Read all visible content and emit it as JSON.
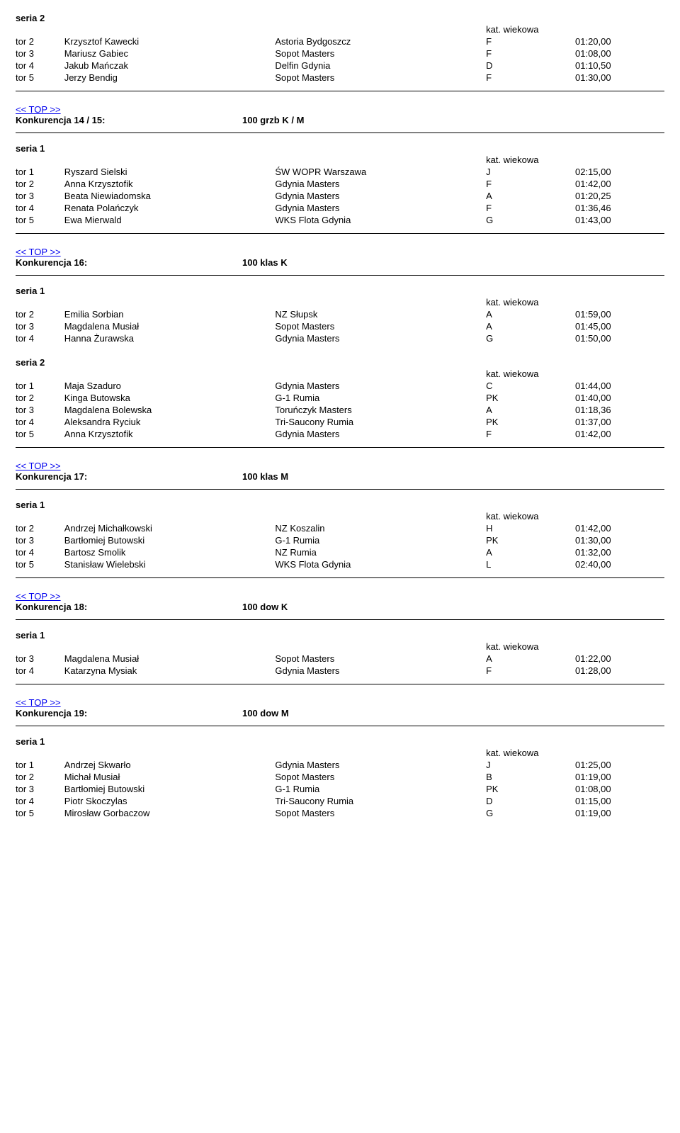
{
  "labels": {
    "seria1": "seria 1",
    "seria2": "seria 2",
    "kat": "kat. wiekowa",
    "top": "<< TOP >>"
  },
  "blocks": [
    {
      "pre_series": {
        "label": "seria2",
        "rows": [
          {
            "lane": "tor 2",
            "name": "Krzysztof Kawecki",
            "club": "Astoria Bydgoszcz",
            "cat": "F",
            "time": "01:20,00"
          },
          {
            "lane": "tor 3",
            "name": "Mariusz Gabiec",
            "club": "Sopot Masters",
            "cat": "F",
            "time": "01:08,00"
          },
          {
            "lane": "tor 4",
            "name": "Jakub Mańczak",
            "club": "Delfin Gdynia",
            "cat": "D",
            "time": "01:10,50"
          },
          {
            "lane": "tor 5",
            "name": "Jerzy Bendig",
            "club": "Sopot Masters",
            "cat": "F",
            "time": "01:30,00"
          }
        ]
      }
    },
    {
      "header": {
        "title": "Konkurencja 14 / 15:",
        "event": "100 grzb K / M"
      },
      "series": [
        {
          "label": "seria1",
          "rows": [
            {
              "lane": "tor 1",
              "name": "Ryszard Sielski",
              "club": "ŚW WOPR Warszawa",
              "cat": "J",
              "time": "02:15,00"
            },
            {
              "lane": "tor 2",
              "name": "Anna Krzysztofik",
              "club": "Gdynia Masters",
              "cat": "F",
              "time": "01:42,00"
            },
            {
              "lane": "tor 3",
              "name": "Beata Niewiadomska",
              "club": "Gdynia Masters",
              "cat": "A",
              "time": "01:20,25"
            },
            {
              "lane": "tor 4",
              "name": "Renata Polańczyk",
              "club": "Gdynia Masters",
              "cat": "F",
              "time": "01:36,46"
            },
            {
              "lane": "tor 5",
              "name": "Ewa Mierwald",
              "club": "WKS Flota Gdynia",
              "cat": "G",
              "time": "01:43,00"
            }
          ]
        }
      ]
    },
    {
      "header": {
        "title": "Konkurencja 16:",
        "event": "100 klas K"
      },
      "series": [
        {
          "label": "seria1",
          "rows": [
            {
              "lane": "tor 2",
              "name": "Emilia Sorbian",
              "club": "NZ Słupsk",
              "cat": "A",
              "time": "01:59,00"
            },
            {
              "lane": "tor 3",
              "name": "Magdalena Musiał",
              "club": "Sopot Masters",
              "cat": "A",
              "time": "01:45,00"
            },
            {
              "lane": "tor 4",
              "name": "Hanna Żurawska",
              "club": "Gdynia Masters",
              "cat": "G",
              "time": "01:50,00"
            }
          ]
        },
        {
          "label": "seria2",
          "rows": [
            {
              "lane": "tor 1",
              "name": "Maja Szaduro",
              "club": "Gdynia Masters",
              "cat": "C",
              "time": "01:44,00"
            },
            {
              "lane": "tor 2",
              "name": "Kinga Butowska",
              "club": "G-1 Rumia",
              "cat": "PK",
              "time": "01:40,00"
            },
            {
              "lane": "tor 3",
              "name": "Magdalena Bolewska",
              "club": "Toruńczyk Masters",
              "cat": "A",
              "time": "01:18,36"
            },
            {
              "lane": "tor 4",
              "name": "Aleksandra Ryciuk",
              "club": "Tri-Saucony Rumia",
              "cat": "PK",
              "time": "01:37,00"
            },
            {
              "lane": "tor 5",
              "name": "Anna Krzysztofik",
              "club": "Gdynia Masters",
              "cat": "F",
              "time": "01:42,00"
            }
          ]
        }
      ]
    },
    {
      "header": {
        "title": "Konkurencja 17:",
        "event": "100 klas M"
      },
      "series": [
        {
          "label": "seria1",
          "rows": [
            {
              "lane": "tor 2",
              "name": "Andrzej Michałkowski",
              "club": "NZ Koszalin",
              "cat": "H",
              "time": "01:42,00"
            },
            {
              "lane": "tor 3",
              "name": "Bartłomiej Butowski",
              "club": "G-1 Rumia",
              "cat": "PK",
              "time": "01:30,00"
            },
            {
              "lane": "tor 4",
              "name": "Bartosz Smolik",
              "club": "NZ Rumia",
              "cat": "A",
              "time": "01:32,00"
            },
            {
              "lane": "tor 5",
              "name": "Stanisław Wielebski",
              "club": "WKS Flota Gdynia",
              "cat": "L",
              "time": "02:40,00"
            }
          ]
        }
      ]
    },
    {
      "header": {
        "title": "Konkurencja 18:",
        "event": "100 dow K"
      },
      "series": [
        {
          "label": "seria1",
          "rows": [
            {
              "lane": "tor 3",
              "name": "Magdalena Musiał",
              "club": "Sopot Masters",
              "cat": "A",
              "time": "01:22,00"
            },
            {
              "lane": "tor 4",
              "name": "Katarzyna Mysiak",
              "club": "Gdynia Masters",
              "cat": "F",
              "time": "01:28,00"
            }
          ]
        }
      ]
    },
    {
      "header": {
        "title": "Konkurencja 19:",
        "event": "100 dow M"
      },
      "series": [
        {
          "label": "seria1",
          "rows": [
            {
              "lane": "tor 1",
              "name": "Andrzej Skwarło",
              "club": "Gdynia Masters",
              "cat": "J",
              "time": "01:25,00"
            },
            {
              "lane": "tor 2",
              "name": "Michał Musiał",
              "club": "Sopot Masters",
              "cat": "B",
              "time": "01:19,00"
            },
            {
              "lane": "tor 3",
              "name": "Bartłomiej Butowski",
              "club": "G-1 Rumia",
              "cat": "PK",
              "time": "01:08,00"
            },
            {
              "lane": "tor 4",
              "name": "Piotr Skoczylas",
              "club": "Tri-Saucony Rumia",
              "cat": "D",
              "time": "01:15,00"
            },
            {
              "lane": "tor 5",
              "name": "Mirosław Gorbaczow",
              "club": "Sopot Masters",
              "cat": "G",
              "time": "01:19,00"
            }
          ],
          "no_trailing_rule": true
        }
      ]
    }
  ]
}
